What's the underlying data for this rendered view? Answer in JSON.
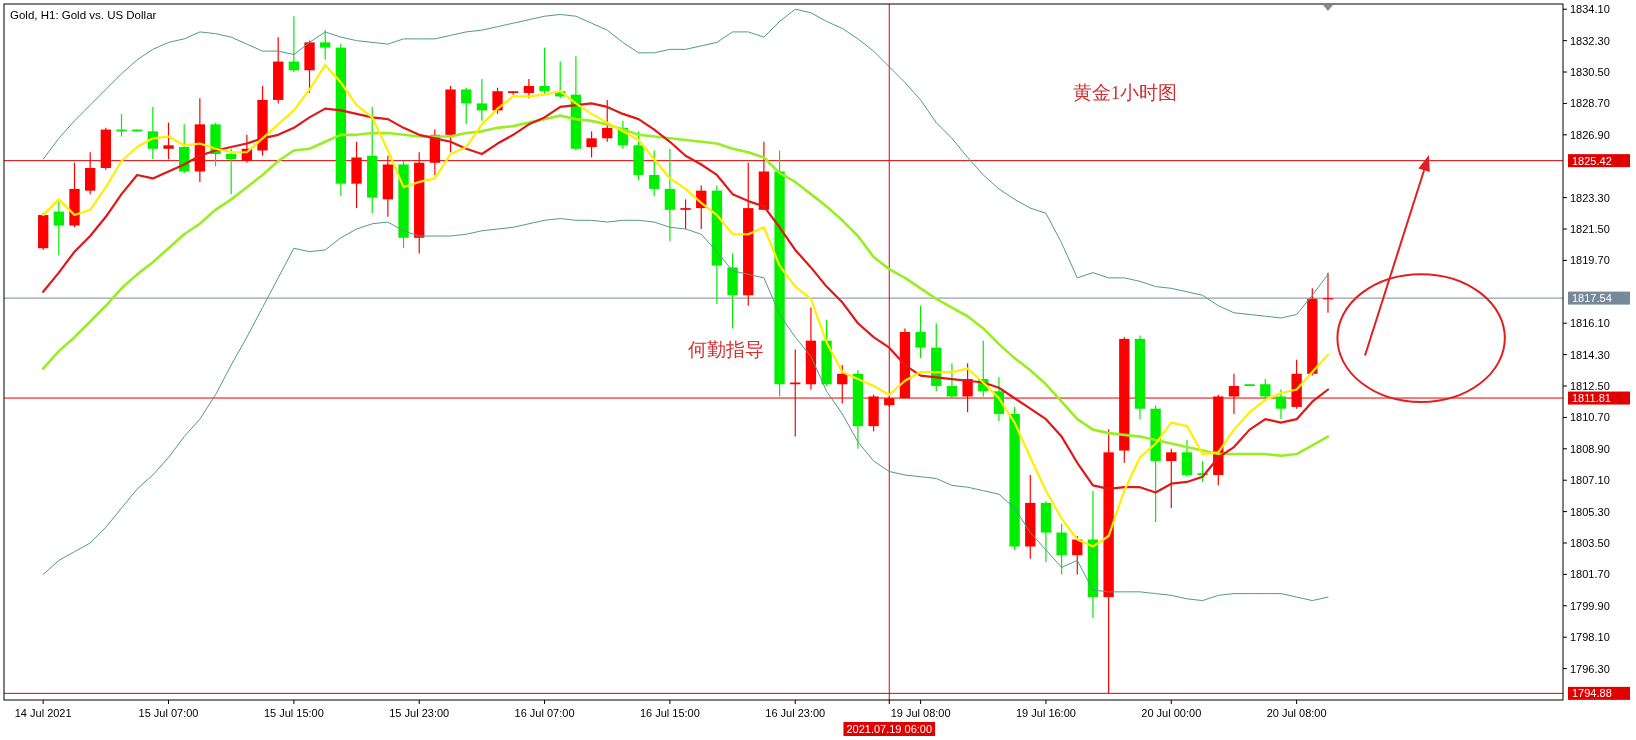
{
  "chart_data": {
    "type": "candlestick",
    "title": "Gold, H1: Gold vs. US Dollar",
    "categories": [
      "14 Jul 2021",
      null,
      null,
      null,
      null,
      null,
      null,
      null,
      "15 Jul 07:00",
      null,
      null,
      null,
      null,
      null,
      null,
      null,
      "15 Jul 15:00",
      null,
      null,
      null,
      null,
      null,
      null,
      null,
      "15 Jul 23:00",
      null,
      null,
      null,
      null,
      null,
      null,
      null,
      "16 Jul 07:00",
      null,
      null,
      null,
      null,
      null,
      null,
      null,
      "16 Jul 15:00",
      null,
      null,
      null,
      null,
      null,
      null,
      null,
      "16 Jul 23:00",
      null,
      null,
      null,
      null,
      null,
      "2021.07.19 06:00",
      null,
      "19 Jul 08:00",
      null,
      null,
      null,
      null,
      null,
      null,
      null,
      "19 Jul 16:00",
      null,
      null,
      null,
      null,
      null,
      null,
      null,
      "20 Jul 00:00",
      null,
      null,
      null,
      null,
      null,
      null,
      null,
      "20 Jul 08:00",
      null,
      null
    ],
    "ohlc": [
      [
        1820.4,
        1822.4,
        1820.3,
        1822.3
      ],
      [
        1822.5,
        1823.2,
        1820.0,
        1821.7
      ],
      [
        1821.7,
        1825.3,
        1821.6,
        1823.8
      ],
      [
        1823.7,
        1825.9,
        1823.5,
        1825.0
      ],
      [
        1825.0,
        1827.3,
        1824.9,
        1827.2
      ],
      [
        1827.2,
        1828.1,
        1826.8,
        1827.1
      ],
      [
        1827.2,
        1827.2,
        1827.1,
        1827.1
      ],
      [
        1827.1,
        1828.5,
        1825.5,
        1826.1
      ],
      [
        1826.1,
        1827.6,
        1825.5,
        1826.3
      ],
      [
        1826.2,
        1827.5,
        1824.7,
        1824.8
      ],
      [
        1824.8,
        1829.0,
        1824.2,
        1827.5
      ],
      [
        1827.5,
        1827.6,
        1825.1,
        1825.8
      ],
      [
        1825.8,
        1826.1,
        1823.5,
        1825.5
      ],
      [
        1825.4,
        1826.9,
        1825.3,
        1826.1
      ],
      [
        1826.0,
        1829.7,
        1825.7,
        1828.9
      ],
      [
        1828.9,
        1832.5,
        1828.7,
        1831.1
      ],
      [
        1831.1,
        1833.7,
        1830.5,
        1830.6
      ],
      [
        1830.6,
        1832.3,
        1829.3,
        1832.2
      ],
      [
        1832.2,
        1832.9,
        1831.2,
        1831.9
      ],
      [
        1831.9,
        1832.1,
        1823.4,
        1824.1
      ],
      [
        1824.1,
        1826.5,
        1822.7,
        1825.6
      ],
      [
        1825.7,
        1828.5,
        1822.4,
        1823.3
      ],
      [
        1823.2,
        1825.7,
        1822.2,
        1825.2
      ],
      [
        1825.2,
        1825.4,
        1820.4,
        1821.0
      ],
      [
        1821.0,
        1825.9,
        1820.1,
        1825.3
      ],
      [
        1825.3,
        1827.2,
        1824.6,
        1826.9
      ],
      [
        1826.9,
        1829.7,
        1825.9,
        1829.5
      ],
      [
        1829.5,
        1829.6,
        1827.5,
        1828.7
      ],
      [
        1828.7,
        1830.1,
        1827.7,
        1828.3
      ],
      [
        1828.3,
        1829.6,
        1828.1,
        1829.4
      ],
      [
        1829.3,
        1829.4,
        1829.2,
        1829.4
      ],
      [
        1829.3,
        1830.1,
        1829.0,
        1829.7
      ],
      [
        1829.7,
        1831.9,
        1829.2,
        1829.4
      ],
      [
        1829.4,
        1831.1,
        1829.0,
        1829.1
      ],
      [
        1829.2,
        1831.4,
        1826.0,
        1826.1
      ],
      [
        1826.2,
        1827.1,
        1825.6,
        1826.7
      ],
      [
        1826.7,
        1828.9,
        1826.5,
        1827.3
      ],
      [
        1827.3,
        1827.7,
        1826.1,
        1826.3
      ],
      [
        1826.3,
        1827.1,
        1824.3,
        1824.6
      ],
      [
        1824.6,
        1826.0,
        1823.4,
        1823.8
      ],
      [
        1823.8,
        1826.1,
        1820.8,
        1822.6
      ],
      [
        1822.6,
        1823.2,
        1821.5,
        1822.7
      ],
      [
        1822.7,
        1824.0,
        1821.5,
        1823.7
      ],
      [
        1823.7,
        1824.0,
        1817.2,
        1819.4
      ],
      [
        1819.3,
        1820.1,
        1815.8,
        1817.7
      ],
      [
        1817.7,
        1825.3,
        1817.1,
        1822.7
      ],
      [
        1822.6,
        1826.5,
        1822.6,
        1824.8
      ],
      [
        1824.8,
        1826.0,
        1811.9,
        1812.6
      ],
      [
        1812.6,
        1814.6,
        1809.6,
        1812.7
      ],
      [
        1812.6,
        1817.0,
        1812.3,
        1815.1
      ],
      [
        1815.1,
        1816.3,
        1812.5,
        1812.6
      ],
      [
        1812.6,
        1813.7,
        1811.5,
        1813.2
      ],
      [
        1813.2,
        1813.4,
        1808.9,
        1810.2
      ],
      [
        1810.2,
        1812.0,
        1809.9,
        1811.9
      ],
      [
        1811.4,
        1811.9,
        1811.3,
        1811.8
      ],
      [
        1811.8,
        1815.8,
        1811.8,
        1815.6
      ],
      [
        1815.6,
        1817.1,
        1814.1,
        1814.7
      ],
      [
        1814.7,
        1816.1,
        1812.2,
        1812.5
      ],
      [
        1812.5,
        1813.8,
        1811.8,
        1811.9
      ],
      [
        1811.9,
        1813.8,
        1811.0,
        1812.9
      ],
      [
        1812.9,
        1815.1,
        1811.9,
        1812.2
      ],
      [
        1812.2,
        1813.0,
        1810.5,
        1810.9
      ],
      [
        1810.9,
        1811.3,
        1803.1,
        1803.3
      ],
      [
        1803.3,
        1807.4,
        1802.6,
        1805.8
      ],
      [
        1805.8,
        1805.9,
        1802.4,
        1804.1
      ],
      [
        1804.1,
        1804.6,
        1801.7,
        1802.8
      ],
      [
        1802.8,
        1803.9,
        1801.7,
        1803.7
      ],
      [
        1803.7,
        1806.5,
        1799.2,
        1800.4
      ],
      [
        1800.4,
        1810.0,
        1794.88,
        1808.7
      ],
      [
        1808.8,
        1815.3,
        1808.1,
        1815.2
      ],
      [
        1815.2,
        1815.4,
        1810.6,
        1811.2
      ],
      [
        1811.2,
        1811.4,
        1804.7,
        1808.2
      ],
      [
        1808.2,
        1808.9,
        1805.5,
        1808.7
      ],
      [
        1808.7,
        1809.4,
        1807.3,
        1807.4
      ],
      [
        1807.5,
        1808.2,
        1807.0,
        1807.4
      ],
      [
        1807.4,
        1812.0,
        1806.8,
        1811.9
      ],
      [
        1811.9,
        1813.2,
        1810.9,
        1812.5
      ],
      [
        1812.6,
        1812.6,
        1812.5,
        1812.5
      ],
      [
        1812.6,
        1812.9,
        1811.8,
        1811.9
      ],
      [
        1811.9,
        1812.3,
        1810.6,
        1811.2
      ],
      [
        1811.3,
        1814.0,
        1811.2,
        1813.2
      ],
      [
        1813.2,
        1818.1,
        1813.1,
        1817.5
      ],
      [
        1817.5,
        1819.0,
        1816.7,
        1817.54
      ]
    ],
    "colors": [
      "#ff0000",
      "#00ee00",
      "#ff0000",
      "#ff0000",
      "#ff0000",
      "#00ee00",
      "#00ee00",
      "#00ee00",
      "#ff0000",
      "#00ee00",
      "#ff0000",
      "#00ee00",
      "#00ee00",
      "#ff0000",
      "#ff0000",
      "#ff0000",
      "#00ee00",
      "#ff0000",
      "#00ee00",
      "#00ee00",
      "#ff0000",
      "#00ee00",
      "#ff0000",
      "#00ee00",
      "#ff0000",
      "#ff0000",
      "#ff0000",
      "#00ee00",
      "#00ee00",
      "#ff0000",
      "#ff0000",
      "#ff0000",
      "#00ee00",
      "#00ee00",
      "#00ee00",
      "#ff0000",
      "#ff0000",
      "#00ee00",
      "#00ee00",
      "#00ee00",
      "#00ee00",
      "#ff0000",
      "#ff0000",
      "#00ee00",
      "#00ee00",
      "#ff0000",
      "#ff0000",
      "#00ee00",
      "#ff0000",
      "#ff0000",
      "#00ee00",
      "#ff0000",
      "#00ee00",
      "#ff0000",
      "#ff0000",
      "#ff0000",
      "#00ee00",
      "#00ee00",
      "#00ee00",
      "#ff0000",
      "#00ee00",
      "#00ee00",
      "#00ee00",
      "#ff0000",
      "#00ee00",
      "#00ee00",
      "#ff0000",
      "#00ee00",
      "#ff0000",
      "#ff0000",
      "#00ee00",
      "#00ee00",
      "#ff0000",
      "#00ee00",
      "#00ee00",
      "#ff0000",
      "#ff0000",
      "#00ee00",
      "#00ee00",
      "#00ee00",
      "#ff0000",
      "#ff0000",
      "#ff0000"
    ],
    "series": [
      {
        "type": "line",
        "color": "#4f9c8a",
        "values": [
          1825.5,
          1826.7,
          1827.7,
          1828.6,
          1829.5,
          1830.4,
          1831.2,
          1831.8,
          1832.2,
          1832.4,
          1832.8,
          1832.7,
          1832.5,
          1832.1,
          1831.7,
          1831.7,
          1831.5,
          1832.2,
          1832.8,
          1832.5,
          1832.3,
          1832.2,
          1832.1,
          1832.4,
          1832.4,
          1832.4,
          1832.6,
          1832.8,
          1832.9,
          1833.1,
          1833.3,
          1833.5,
          1833.7,
          1833.8,
          1833.7,
          1833.3,
          1832.9,
          1832.2,
          1831.6,
          1831.6,
          1831.8,
          1831.8,
          1832.0,
          1832.2,
          1832.8,
          1832.8,
          1832.5,
          1833.4,
          1834.1,
          1833.9,
          1833.4,
          1833.0,
          1832.4,
          1831.7,
          1830.8,
          1829.9,
          1828.9,
          1827.6,
          1826.7,
          1825.6,
          1824.6,
          1823.8,
          1823.2,
          1822.7,
          1822.4,
          1820.7,
          1818.7,
          1819.0,
          1818.7,
          1818.7,
          1818.5,
          1818.2,
          1818.1,
          1817.9,
          1817.7,
          1817.1,
          1816.7,
          1816.6,
          1816.5,
          1816.4,
          1816.6,
          1817.7,
          1818.9
        ]
      },
      {
        "type": "line",
        "color": "#4f9c8a",
        "values": [
          1801.7,
          1802.5,
          1803.0,
          1803.5,
          1804.4,
          1805.5,
          1806.6,
          1807.4,
          1808.4,
          1809.6,
          1810.6,
          1812.0,
          1813.7,
          1815.3,
          1817.0,
          1818.7,
          1820.4,
          1820.2,
          1820.3,
          1821.0,
          1821.5,
          1821.8,
          1821.9,
          1821.4,
          1821.1,
          1821.1,
          1821.1,
          1821.2,
          1821.4,
          1821.5,
          1821.6,
          1821.8,
          1822.0,
          1822.1,
          1822.0,
          1822.0,
          1821.9,
          1822.0,
          1822.0,
          1821.9,
          1821.6,
          1821.5,
          1821.2,
          1820.2,
          1819.1,
          1818.9,
          1818.7,
          1816.6,
          1815.3,
          1814.2,
          1812.2,
          1810.9,
          1809.3,
          1808.2,
          1807.6,
          1807.4,
          1807.3,
          1807.2,
          1806.8,
          1806.7,
          1806.5,
          1806.3,
          1805.5,
          1804.1,
          1803.1,
          1802.1,
          1802.5,
          1800.8,
          1800.7,
          1800.7,
          1800.7,
          1800.6,
          1800.5,
          1800.3,
          1800.2,
          1800.5,
          1800.6,
          1800.6,
          1800.6,
          1800.6,
          1800.4,
          1800.2,
          1800.4
        ]
      },
      {
        "type": "line",
        "color": "#99ee22",
        "values": [
          1813.5,
          1814.5,
          1815.3,
          1816.2,
          1817.1,
          1818.1,
          1818.9,
          1819.6,
          1820.4,
          1821.2,
          1821.8,
          1822.6,
          1823.2,
          1823.9,
          1824.6,
          1825.4,
          1826.0,
          1826.1,
          1826.5,
          1826.9,
          1826.9,
          1827.0,
          1827.0,
          1826.9,
          1826.8,
          1826.8,
          1826.8,
          1827.0,
          1827.1,
          1827.3,
          1827.4,
          1827.6,
          1827.8,
          1828.0,
          1827.8,
          1827.7,
          1827.5,
          1827.2,
          1826.9,
          1826.8,
          1826.7,
          1826.6,
          1826.5,
          1826.4,
          1826.1,
          1825.9,
          1825.6,
          1824.7,
          1824.2,
          1823.5,
          1822.8,
          1822.0,
          1821.1,
          1819.9,
          1819.2,
          1818.7,
          1818.1,
          1817.5,
          1817.0,
          1816.5,
          1815.8,
          1814.9,
          1814.1,
          1813.4,
          1812.6,
          1811.6,
          1810.6,
          1810.0,
          1809.8,
          1809.7,
          1809.6,
          1809.4,
          1809.2,
          1809.0,
          1808.8,
          1808.6,
          1808.6,
          1808.6,
          1808.6,
          1808.5,
          1808.6,
          1809.1,
          1809.6
        ]
      },
      {
        "type": "line",
        "color": "#e01818",
        "values": [
          1817.9,
          1819.0,
          1820.2,
          1821.1,
          1822.2,
          1823.5,
          1824.6,
          1824.4,
          1824.8,
          1825.2,
          1825.7,
          1826.0,
          1826.2,
          1826.4,
          1826.7,
          1826.9,
          1827.3,
          1827.9,
          1828.4,
          1828.3,
          1828.1,
          1827.9,
          1827.8,
          1827.3,
          1826.9,
          1826.7,
          1826.5,
          1826.1,
          1825.8,
          1826.4,
          1826.9,
          1827.5,
          1827.9,
          1828.5,
          1828.6,
          1828.7,
          1828.5,
          1828.1,
          1827.8,
          1827.2,
          1826.5,
          1825.7,
          1825.2,
          1824.6,
          1823.5,
          1823.1,
          1822.8,
          1821.6,
          1820.3,
          1819.3,
          1818.2,
          1817.3,
          1816.1,
          1815.3,
          1814.7,
          1813.7,
          1813.1,
          1813.0,
          1812.9,
          1812.8,
          1812.7,
          1812.4,
          1811.8,
          1811.2,
          1810.6,
          1809.6,
          1808.1,
          1806.8,
          1806.6,
          1806.7,
          1806.7,
          1806.4,
          1806.9,
          1807.0,
          1807.3,
          1808.4,
          1809.0,
          1810.0,
          1810.6,
          1810.4,
          1810.6,
          1811.6,
          1812.3
        ]
      },
      {
        "type": "line",
        "color": "#ffee00",
        "values": [
          1822.3,
          1823.2,
          1822.3,
          1822.6,
          1823.9,
          1825.4,
          1826.2,
          1826.7,
          1826.8,
          1826.3,
          1826.4,
          1826.1,
          1825.9,
          1825.9,
          1826.7,
          1827.5,
          1828.3,
          1829.5,
          1830.9,
          1829.9,
          1828.6,
          1827.9,
          1826.0,
          1823.9,
          1824.2,
          1824.4,
          1825.8,
          1826.2,
          1827.5,
          1828.4,
          1829.1,
          1829.1,
          1829.2,
          1829.4,
          1828.7,
          1828.1,
          1827.6,
          1827.1,
          1826.6,
          1825.5,
          1824.4,
          1823.8,
          1823.0,
          1822.3,
          1821.2,
          1821.2,
          1821.6,
          1819.4,
          1818.2,
          1817.5,
          1815.0,
          1813.3,
          1812.9,
          1812.5,
          1812.0,
          1812.8,
          1813.3,
          1813.3,
          1813.3,
          1813.5,
          1812.7,
          1811.8,
          1810.4,
          1808.4,
          1806.5,
          1804.9,
          1803.7,
          1803.3,
          1803.9,
          1806.5,
          1808.4,
          1809.2,
          1810.4,
          1810.2,
          1808.6,
          1808.7,
          1810.0,
          1811.0,
          1811.7,
          1812.1,
          1812.3,
          1813.3,
          1814.3
        ]
      }
    ],
    "ylim": [
      1794.5,
      1834.4
    ],
    "yticks": [
      {
        "value": 1834.1,
        "label": "1834.10"
      },
      {
        "value": 1832.3,
        "label": "1832.30"
      },
      {
        "value": 1830.5,
        "label": "1830.50"
      },
      {
        "value": 1828.7,
        "label": "1828.70"
      },
      {
        "value": 1826.9,
        "label": "1826.90"
      },
      {
        "value": 1823.3,
        "label": "1823.30"
      },
      {
        "value": 1821.5,
        "label": "1821.50"
      },
      {
        "value": 1819.7,
        "label": "1819.70"
      },
      {
        "value": 1816.1,
        "label": "1816.10"
      },
      {
        "value": 1814.3,
        "label": "1814.30"
      },
      {
        "value": 1812.5,
        "label": "1812.50"
      },
      {
        "value": 1810.7,
        "label": "1810.70"
      },
      {
        "value": 1808.9,
        "label": "1808.90"
      },
      {
        "value": 1807.1,
        "label": "1807.10"
      },
      {
        "value": 1805.3,
        "label": "1805.30"
      },
      {
        "value": 1803.5,
        "label": "1803.50"
      },
      {
        "value": 1801.7,
        "label": "1801.70"
      },
      {
        "value": 1799.9,
        "label": "1799.90"
      },
      {
        "value": 1798.1,
        "label": "1798.10"
      },
      {
        "value": 1796.3,
        "label": "1796.30"
      }
    ],
    "ref_lines": [
      {
        "axis": "y",
        "value": 1825.42,
        "label": "1825.42",
        "color": "#e00000"
      },
      {
        "axis": "y",
        "value": 1817.54,
        "label": "1817.54",
        "color": "#778899"
      },
      {
        "axis": "y",
        "value": 1811.81,
        "label": "1811.81",
        "color": "#e00000"
      },
      {
        "axis": "y",
        "value": 1794.88,
        "label": "1794.88",
        "color": "#e00000"
      },
      {
        "axis": "x",
        "value": "2021.07.19 06:00",
        "color": "#e00000"
      }
    ],
    "annotations": [
      "黄金1小时图",
      "何勤指导"
    ]
  }
}
